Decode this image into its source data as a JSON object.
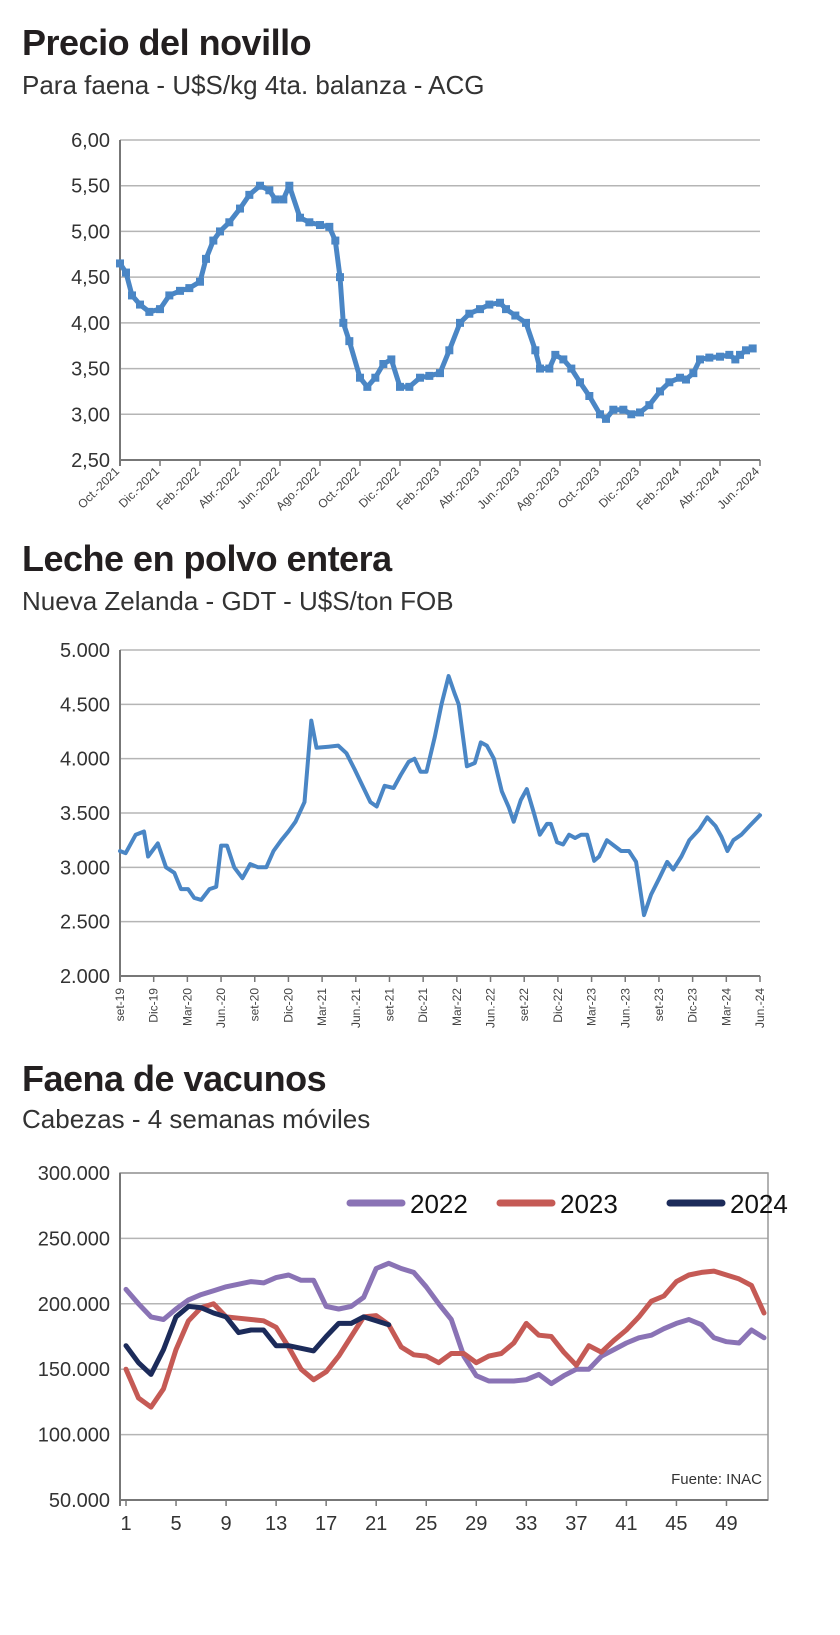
{
  "chart_data": [
    {
      "type": "line",
      "title": "Precio del novillo",
      "subtitle": "Para faena - U$S/kg 4ta. balanza - ACG",
      "ylim": [
        2.5,
        6.0
      ],
      "yticks": [
        "2,50",
        "3,00",
        "3,50",
        "4,00",
        "4,50",
        "5,00",
        "5,50",
        "6,00"
      ],
      "xlim": [
        "2021-10-01",
        "2024-06-01"
      ],
      "xticks": [
        "Oct.-2021",
        "Dic.-2021",
        "Feb.-2022",
        "Abr.-2022",
        "Jun.-2022",
        "Ago.-2022",
        "Oct.-2022",
        "Dic.-2022",
        "Feb.-2023",
        "Abr.-2023",
        "Jun.-2023",
        "Ago.-2023",
        "Oct.-2023",
        "Dic.-2023",
        "Feb.-2024",
        "Abr.-2024",
        "Jun.-2024"
      ],
      "grid": true,
      "color": "#4a86c5",
      "series": [
        {
          "x": [
            "2021-10-01",
            "2021-10-10",
            "2021-10-19",
            "2021-11-01",
            "2021-11-15",
            "2021-12-01",
            "2021-12-15",
            "2022-01-01",
            "2022-01-15",
            "2022-02-01",
            "2022-02-10",
            "2022-02-21",
            "2022-03-01",
            "2022-03-15",
            "2022-04-01",
            "2022-04-15",
            "2022-05-01",
            "2022-05-15",
            "2022-05-24",
            "2022-06-06",
            "2022-06-15",
            "2022-07-01",
            "2022-07-15",
            "2022-08-01",
            "2022-08-15",
            "2022-08-24",
            "2022-09-01",
            "2022-09-06",
            "2022-09-15",
            "2022-10-01",
            "2022-10-12",
            "2022-10-24",
            "2022-11-06",
            "2022-11-18",
            "2022-12-01",
            "2022-12-15",
            "2023-01-01",
            "2023-01-15",
            "2023-02-01",
            "2023-02-15",
            "2023-03-01",
            "2023-03-15",
            "2023-04-01",
            "2023-04-15",
            "2023-05-01",
            "2023-05-10",
            "2023-05-24",
            "2023-06-10",
            "2023-06-24",
            "2023-07-01",
            "2023-07-15",
            "2023-07-24",
            "2023-08-06",
            "2023-08-18",
            "2023-09-01",
            "2023-09-15",
            "2023-10-01",
            "2023-10-10",
            "2023-10-21",
            "2023-11-06",
            "2023-11-18",
            "2023-12-01",
            "2023-12-15",
            "2024-01-01",
            "2024-01-15",
            "2024-02-01",
            "2024-02-10",
            "2024-02-21",
            "2024-03-01",
            "2024-03-15",
            "2024-04-01",
            "2024-04-15",
            "2024-04-24",
            "2024-05-01",
            "2024-05-10",
            "2024-05-20"
          ],
          "y": [
            4.65,
            4.55,
            4.3,
            4.2,
            4.12,
            4.15,
            4.3,
            4.35,
            4.38,
            4.45,
            4.7,
            4.9,
            5.0,
            5.1,
            5.25,
            5.4,
            5.5,
            5.45,
            5.35,
            5.35,
            5.5,
            5.15,
            5.1,
            5.07,
            5.05,
            4.9,
            4.5,
            4.0,
            3.8,
            3.4,
            3.3,
            3.4,
            3.55,
            3.6,
            3.3,
            3.3,
            3.4,
            3.42,
            3.45,
            3.7,
            4.0,
            4.1,
            4.15,
            4.2,
            4.22,
            4.15,
            4.08,
            4.0,
            3.7,
            3.5,
            3.5,
            3.65,
            3.6,
            3.5,
            3.35,
            3.2,
            3.0,
            2.95,
            3.05,
            3.05,
            3.0,
            3.02,
            3.1,
            3.25,
            3.35,
            3.4,
            3.38,
            3.45,
            3.6,
            3.62,
            3.63,
            3.65,
            3.6,
            3.65,
            3.7,
            3.72
          ]
        }
      ]
    },
    {
      "type": "line",
      "title": "Leche en polvo entera",
      "subtitle": "Nueva Zelanda - GDT - U$S/ton FOB",
      "ylim": [
        2000,
        5000
      ],
      "yticks": [
        "2.000",
        "2.500",
        "3.000",
        "3.500",
        "4.000",
        "4.500",
        "5.000"
      ],
      "xlim": [
        "2019-09-01",
        "2024-06-01"
      ],
      "xticks": [
        "set-19",
        "Dic-19",
        "Mar-20",
        "Jun.-20",
        "set-20",
        "Dic-20",
        "Mar-21",
        "Jun.-21",
        "set-21",
        "Dic-21",
        "Mar-22",
        "Jun.-22",
        "set-22",
        "Dic-22",
        "Mar-23",
        "Jun.-23",
        "set-23",
        "Dic-23",
        "Mar-24",
        "Jun.-24"
      ],
      "grid": true,
      "color": "#4a86c5",
      "series": [
        {
          "x": [
            "2019-09-01",
            "2019-09-16",
            "2019-10-13",
            "2019-11-05",
            "2019-11-16",
            "2019-12-12",
            "2020-01-04",
            "2020-01-26",
            "2020-02-14",
            "2020-03-03",
            "2020-03-19",
            "2020-04-08",
            "2020-04-30",
            "2020-05-18",
            "2020-06-01",
            "2020-06-17",
            "2020-07-06",
            "2020-07-28",
            "2020-08-19",
            "2020-09-10",
            "2020-10-02",
            "2020-10-21",
            "2020-11-12",
            "2020-12-01",
            "2020-12-20",
            "2021-01-14",
            "2021-02-02",
            "2021-02-16",
            "2021-03-18",
            "2021-04-14",
            "2021-05-06",
            "2021-05-28",
            "2021-06-19",
            "2021-07-10",
            "2021-07-27",
            "2021-08-18",
            "2021-09-12",
            "2021-10-01",
            "2021-10-22",
            "2021-11-08",
            "2021-11-24",
            "2021-12-10",
            "2022-01-02",
            "2022-01-20",
            "2022-02-09",
            "2022-02-25",
            "2022-03-06",
            "2022-03-28",
            "2022-04-19",
            "2022-05-05",
            "2022-05-21",
            "2022-06-10",
            "2022-07-01",
            "2022-07-20",
            "2022-08-03",
            "2022-08-22",
            "2022-09-08",
            "2022-09-27",
            "2022-10-13",
            "2022-11-02",
            "2022-11-12",
            "2022-11-29",
            "2022-12-15",
            "2023-01-01",
            "2023-01-17",
            "2023-02-03",
            "2023-02-19",
            "2023-03-08",
            "2023-03-21",
            "2023-04-12",
            "2023-05-01",
            "2023-05-20",
            "2023-06-11",
            "2023-06-30",
            "2023-07-21",
            "2023-08-10",
            "2023-09-02",
            "2023-09-23",
            "2023-10-09",
            "2023-11-01",
            "2023-11-22",
            "2023-12-19",
            "2024-01-10",
            "2024-02-02",
            "2024-02-18",
            "2024-03-04",
            "2024-03-20",
            "2024-04-11",
            "2024-05-03",
            "2024-06-01"
          ],
          "y": [
            3150,
            3130,
            3300,
            3330,
            3100,
            3220,
            3000,
            2950,
            2800,
            2800,
            2720,
            2700,
            2800,
            2820,
            3200,
            3200,
            3000,
            2900,
            3030,
            3000,
            3000,
            3150,
            3250,
            3330,
            3420,
            3600,
            4350,
            4100,
            4110,
            4120,
            4050,
            3900,
            3750,
            3600,
            3560,
            3750,
            3730,
            3850,
            3970,
            4000,
            3880,
            3880,
            4200,
            4500,
            4760,
            4600,
            4500,
            3930,
            3960,
            4150,
            4120,
            4000,
            3700,
            3550,
            3420,
            3620,
            3720,
            3500,
            3300,
            3400,
            3400,
            3230,
            3210,
            3300,
            3270,
            3300,
            3300,
            3060,
            3100,
            3250,
            3200,
            3150,
            3150,
            3050,
            2560,
            2750,
            2900,
            3050,
            2980,
            3100,
            3250,
            3350,
            3460,
            3380,
            3280,
            3150,
            3250,
            3300,
            3380,
            3480
          ]
        }
      ]
    },
    {
      "type": "line",
      "title": "Faena de vacunos",
      "subtitle": "Cabezas - 4 semanas móviles",
      "ylim": [
        50000,
        300000
      ],
      "yticks": [
        "50.000",
        "100.000",
        "150.000",
        "200.000",
        "250.000",
        "300.000"
      ],
      "xlim": [
        1,
        52
      ],
      "xticks": [
        "1",
        "5",
        "9",
        "13",
        "17",
        "21",
        "25",
        "29",
        "33",
        "37",
        "41",
        "45",
        "49"
      ],
      "grid": true,
      "legend": "top-right",
      "source": "Fuente: INAC",
      "series": [
        {
          "name": "2022",
          "color": "#8a73b5",
          "y": [
            211000,
            200000,
            190000,
            188000,
            196000,
            203000,
            207000,
            210000,
            213000,
            215000,
            217000,
            216000,
            220000,
            222000,
            218000,
            218000,
            198000,
            196000,
            198000,
            205000,
            227000,
            231000,
            227000,
            224000,
            213000,
            200000,
            188000,
            160000,
            145000,
            141000,
            141000,
            141000,
            142000,
            146000,
            139000,
            145000,
            150000,
            150000,
            160000,
            165000,
            170000,
            174000,
            176000,
            181000,
            185000,
            188000,
            184000,
            174000,
            171000,
            170000,
            180000,
            174000
          ]
        },
        {
          "name": "2023",
          "color": "#c55a55",
          "y": [
            150000,
            128000,
            121000,
            135000,
            165000,
            187000,
            197000,
            200000,
            190000,
            189000,
            188000,
            187000,
            182000,
            167000,
            150000,
            142000,
            148000,
            160000,
            175000,
            190000,
            191000,
            184000,
            167000,
            161000,
            160000,
            155000,
            162000,
            162000,
            155000,
            160000,
            162000,
            170000,
            185000,
            176000,
            175000,
            163000,
            153000,
            168000,
            163000,
            172000,
            180000,
            190000,
            202000,
            206000,
            217000,
            222000,
            224000,
            225000,
            222000,
            219000,
            214000,
            193000
          ]
        },
        {
          "name": "2024",
          "color": "#1c2b5a",
          "y": [
            168000,
            155000,
            146000,
            165000,
            190000,
            198000,
            197000,
            193000,
            190000,
            178000,
            180000,
            180000,
            168000,
            168000,
            166000,
            164000,
            175000,
            185000,
            185000,
            190000,
            187000,
            184000
          ]
        }
      ]
    }
  ]
}
